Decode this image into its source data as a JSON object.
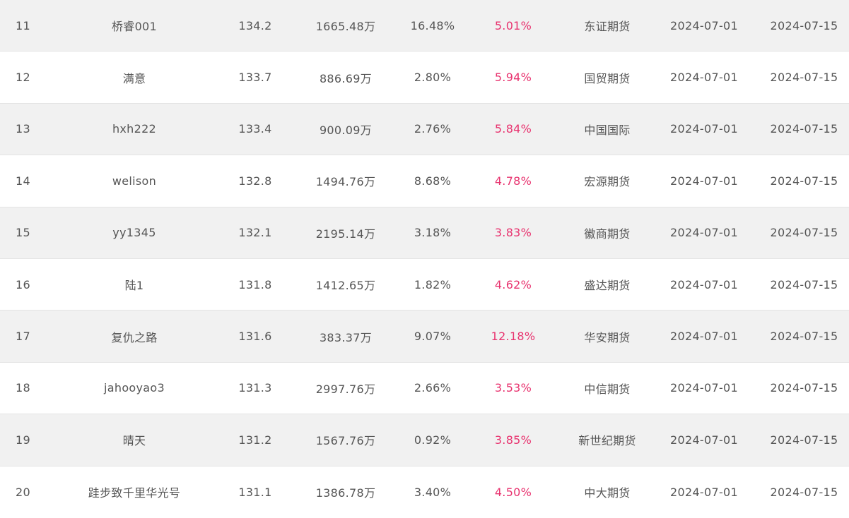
{
  "colors": {
    "text": "#555555",
    "accent_pink": "#e8336f",
    "row_alt_bg": "#f1f1f1",
    "row_bg": "#ffffff"
  },
  "rows": [
    {
      "rank": "11",
      "name": "桥睿001",
      "score": "134.2",
      "equity": "1665.48万",
      "return_rate": "16.48%",
      "drawdown": "5.01%",
      "broker": "东证期货",
      "start_date": "2024-07-01",
      "end_date": "2024-07-15"
    },
    {
      "rank": "12",
      "name": "满意",
      "score": "133.7",
      "equity": "886.69万",
      "return_rate": "2.80%",
      "drawdown": "5.94%",
      "broker": "国贸期货",
      "start_date": "2024-07-01",
      "end_date": "2024-07-15"
    },
    {
      "rank": "13",
      "name": "hxh222",
      "score": "133.4",
      "equity": "900.09万",
      "return_rate": "2.76%",
      "drawdown": "5.84%",
      "broker": "中国国际",
      "start_date": "2024-07-01",
      "end_date": "2024-07-15"
    },
    {
      "rank": "14",
      "name": "welison",
      "score": "132.8",
      "equity": "1494.76万",
      "return_rate": "8.68%",
      "drawdown": "4.78%",
      "broker": "宏源期货",
      "start_date": "2024-07-01",
      "end_date": "2024-07-15"
    },
    {
      "rank": "15",
      "name": "yy1345",
      "score": "132.1",
      "equity": "2195.14万",
      "return_rate": "3.18%",
      "drawdown": "3.83%",
      "broker": "徽商期货",
      "start_date": "2024-07-01",
      "end_date": "2024-07-15"
    },
    {
      "rank": "16",
      "name": "陆1",
      "score": "131.8",
      "equity": "1412.65万",
      "return_rate": "1.82%",
      "drawdown": "4.62%",
      "broker": "盛达期货",
      "start_date": "2024-07-01",
      "end_date": "2024-07-15"
    },
    {
      "rank": "17",
      "name": "复仇之路",
      "score": "131.6",
      "equity": "383.37万",
      "return_rate": "9.07%",
      "drawdown": "12.18%",
      "broker": "华安期货",
      "start_date": "2024-07-01",
      "end_date": "2024-07-15"
    },
    {
      "rank": "18",
      "name": "jahooyao3",
      "score": "131.3",
      "equity": "2997.76万",
      "return_rate": "2.66%",
      "drawdown": "3.53%",
      "broker": "中信期货",
      "start_date": "2024-07-01",
      "end_date": "2024-07-15"
    },
    {
      "rank": "19",
      "name": "晴天",
      "score": "131.2",
      "equity": "1567.76万",
      "return_rate": "0.92%",
      "drawdown": "3.85%",
      "broker": "新世纪期货",
      "start_date": "2024-07-01",
      "end_date": "2024-07-15"
    },
    {
      "rank": "20",
      "name": "跬步致千里华光号",
      "score": "131.1",
      "equity": "1386.78万",
      "return_rate": "3.40%",
      "drawdown": "4.50%",
      "broker": "中大期货",
      "start_date": "2024-07-01",
      "end_date": "2024-07-15"
    }
  ]
}
